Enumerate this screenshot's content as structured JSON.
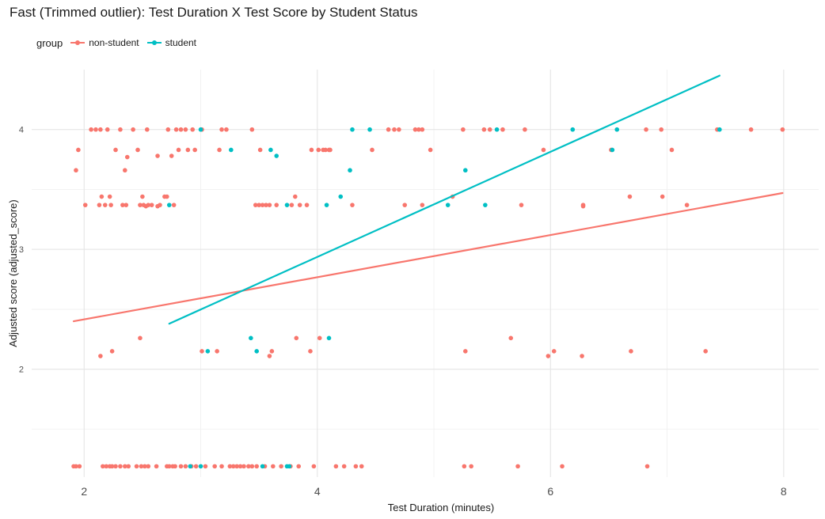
{
  "chart_data": {
    "type": "scatter",
    "title": "Fast (Trimmed outlier): Test Duration X Test Score by Student Status",
    "xlabel": "Test Duration (minutes)",
    "ylabel": "Adjusted score (adjusted_score)",
    "xlim": [
      1.55,
      8.3
    ],
    "ylim": [
      1.1,
      4.5
    ],
    "x_ticks": [
      2,
      4,
      6,
      8
    ],
    "y_ticks": [
      2,
      3,
      4
    ],
    "grid": true,
    "legend_title": "group",
    "legend_position": "top-left",
    "series": [
      {
        "name": "non-student",
        "color": "#F8766D",
        "points": [
          [
            1.91,
            1.19
          ],
          [
            1.93,
            1.19
          ],
          [
            1.96,
            1.19
          ],
          [
            2.16,
            1.19
          ],
          [
            2.19,
            1.19
          ],
          [
            2.22,
            1.19
          ],
          [
            2.24,
            1.19
          ],
          [
            2.27,
            1.19
          ],
          [
            2.31,
            1.19
          ],
          [
            2.35,
            1.19
          ],
          [
            2.38,
            1.19
          ],
          [
            2.45,
            1.19
          ],
          [
            2.49,
            1.19
          ],
          [
            2.52,
            1.19
          ],
          [
            2.55,
            1.19
          ],
          [
            2.62,
            1.19
          ],
          [
            2.71,
            1.19
          ],
          [
            2.73,
            1.19
          ],
          [
            2.76,
            1.19
          ],
          [
            2.78,
            1.19
          ],
          [
            2.83,
            1.19
          ],
          [
            2.87,
            1.19
          ],
          [
            2.92,
            1.19
          ],
          [
            2.96,
            1.19
          ],
          [
            3.04,
            1.19
          ],
          [
            3.12,
            1.19
          ],
          [
            3.18,
            1.19
          ],
          [
            3.25,
            1.19
          ],
          [
            3.28,
            1.19
          ],
          [
            3.31,
            1.19
          ],
          [
            3.34,
            1.19
          ],
          [
            3.37,
            1.19
          ],
          [
            3.41,
            1.19
          ],
          [
            3.44,
            1.19
          ],
          [
            3.48,
            1.19
          ],
          [
            3.55,
            1.19
          ],
          [
            3.62,
            1.19
          ],
          [
            3.69,
            1.19
          ],
          [
            3.77,
            1.19
          ],
          [
            3.84,
            1.19
          ],
          [
            3.97,
            1.19
          ],
          [
            4.16,
            1.19
          ],
          [
            4.23,
            1.19
          ],
          [
            4.33,
            1.19
          ],
          [
            4.38,
            1.19
          ],
          [
            5.26,
            1.19
          ],
          [
            5.32,
            1.19
          ],
          [
            5.72,
            1.19
          ],
          [
            6.1,
            1.19
          ],
          [
            6.83,
            1.19
          ],
          [
            2.14,
            2.11
          ],
          [
            2.24,
            2.15
          ],
          [
            2.48,
            2.26
          ],
          [
            3.01,
            2.15
          ],
          [
            3.14,
            2.15
          ],
          [
            3.59,
            2.11
          ],
          [
            3.61,
            2.15
          ],
          [
            3.82,
            2.26
          ],
          [
            3.94,
            2.15
          ],
          [
            4.02,
            2.26
          ],
          [
            5.27,
            2.15
          ],
          [
            5.66,
            2.26
          ],
          [
            5.98,
            2.11
          ],
          [
            6.03,
            2.15
          ],
          [
            6.27,
            2.11
          ],
          [
            6.69,
            2.15
          ],
          [
            7.33,
            2.15
          ],
          [
            1.93,
            3.66
          ],
          [
            2.01,
            3.37
          ],
          [
            2.13,
            3.37
          ],
          [
            2.15,
            3.44
          ],
          [
            2.18,
            3.37
          ],
          [
            2.22,
            3.44
          ],
          [
            2.33,
            3.37
          ],
          [
            2.36,
            3.37
          ],
          [
            2.48,
            3.37
          ],
          [
            2.5,
            3.44
          ],
          [
            2.51,
            3.37
          ],
          [
            2.53,
            3.36
          ],
          [
            2.55,
            3.37
          ],
          [
            2.58,
            3.37
          ],
          [
            2.63,
            3.36
          ],
          [
            2.65,
            3.37
          ],
          [
            2.69,
            3.44
          ],
          [
            2.71,
            3.44
          ],
          [
            2.77,
            3.37
          ],
          [
            3.47,
            3.37
          ],
          [
            3.5,
            3.37
          ],
          [
            3.53,
            3.37
          ],
          [
            3.56,
            3.37
          ],
          [
            3.59,
            3.37
          ],
          [
            3.65,
            3.37
          ],
          [
            3.78,
            3.37
          ],
          [
            3.81,
            3.44
          ],
          [
            3.85,
            3.37
          ],
          [
            3.91,
            3.37
          ],
          [
            4.3,
            3.37
          ],
          [
            4.75,
            3.37
          ],
          [
            4.9,
            3.37
          ],
          [
            5.16,
            3.44
          ],
          [
            5.75,
            3.37
          ],
          [
            6.28,
            3.36
          ],
          [
            6.28,
            3.37
          ],
          [
            6.68,
            3.44
          ],
          [
            6.96,
            3.44
          ],
          [
            7.17,
            3.37
          ],
          [
            1.95,
            3.83
          ],
          [
            2.06,
            4.0
          ],
          [
            2.1,
            4.0
          ],
          [
            2.14,
            4.0
          ],
          [
            2.2,
            4.0
          ],
          [
            2.27,
            3.83
          ],
          [
            2.31,
            4.0
          ],
          [
            2.35,
            3.66
          ],
          [
            2.37,
            3.77
          ],
          [
            2.42,
            4.0
          ],
          [
            2.46,
            3.83
          ],
          [
            2.54,
            4.0
          ],
          [
            2.63,
            3.78
          ],
          [
            2.79,
            4.0
          ],
          [
            2.81,
            3.83
          ],
          [
            2.83,
            4.0
          ],
          [
            2.87,
            4.0
          ],
          [
            2.89,
            3.83
          ],
          [
            2.93,
            4.0
          ],
          [
            2.95,
            3.83
          ],
          [
            3.01,
            4.0
          ],
          [
            3.16,
            3.83
          ],
          [
            3.22,
            4.0
          ],
          [
            3.44,
            4.0
          ],
          [
            3.51,
            3.83
          ],
          [
            3.95,
            3.83
          ],
          [
            4.01,
            3.83
          ],
          [
            4.05,
            3.83
          ],
          [
            4.07,
            3.83
          ],
          [
            4.1,
            3.83
          ],
          [
            4.11,
            3.83
          ],
          [
            4.47,
            3.83
          ],
          [
            4.61,
            4.0
          ],
          [
            4.66,
            4.0
          ],
          [
            4.7,
            4.0
          ],
          [
            4.84,
            4.0
          ],
          [
            4.87,
            4.0
          ],
          [
            4.9,
            4.0
          ],
          [
            4.97,
            3.83
          ],
          [
            5.25,
            4.0
          ],
          [
            5.43,
            4.0
          ],
          [
            5.48,
            4.0
          ],
          [
            5.59,
            4.0
          ],
          [
            5.78,
            4.0
          ],
          [
            5.94,
            3.83
          ],
          [
            6.52,
            3.83
          ],
          [
            6.82,
            4.0
          ],
          [
            6.95,
            4.0
          ],
          [
            7.04,
            3.83
          ],
          [
            7.43,
            4.0
          ],
          [
            7.72,
            4.0
          ],
          [
            7.99,
            4.0
          ],
          [
            2.72,
            4.0
          ],
          [
            2.75,
            3.78
          ],
          [
            3.18,
            4.0
          ],
          [
            2.23,
            3.37
          ]
        ],
        "fit": {
          "x": [
            1.91,
            7.99
          ],
          "y": [
            2.4,
            3.47
          ]
        }
      },
      {
        "name": "student",
        "color": "#00BFC4",
        "points": [
          [
            2.91,
            1.19
          ],
          [
            3.0,
            1.19
          ],
          [
            3.53,
            1.19
          ],
          [
            3.74,
            1.19
          ],
          [
            3.76,
            1.19
          ],
          [
            3.06,
            2.15
          ],
          [
            3.43,
            2.26
          ],
          [
            3.48,
            2.15
          ],
          [
            4.1,
            2.26
          ],
          [
            2.73,
            3.37
          ],
          [
            3.74,
            3.37
          ],
          [
            4.08,
            3.37
          ],
          [
            4.2,
            3.44
          ],
          [
            5.12,
            3.37
          ],
          [
            5.44,
            3.37
          ],
          [
            3.0,
            4.0
          ],
          [
            3.26,
            3.83
          ],
          [
            3.6,
            3.83
          ],
          [
            3.65,
            3.78
          ],
          [
            4.28,
            3.66
          ],
          [
            4.3,
            4.0
          ],
          [
            4.45,
            4.0
          ],
          [
            5.27,
            3.66
          ],
          [
            5.54,
            4.0
          ],
          [
            6.19,
            4.0
          ],
          [
            6.53,
            3.83
          ],
          [
            6.57,
            4.0
          ],
          [
            7.45,
            4.0
          ]
        ],
        "fit": {
          "x": [
            2.73,
            7.45
          ],
          "y": [
            2.38,
            4.45
          ]
        }
      }
    ]
  }
}
